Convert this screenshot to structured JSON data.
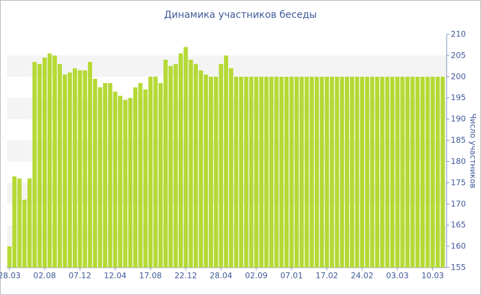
{
  "chart_data": {
    "type": "bar",
    "title": "Динамика участников беседы",
    "y_label": "Число участников",
    "color": "#b5d935",
    "grid": true,
    "categories": [
      "28.03",
      null,
      null,
      null,
      null,
      null,
      null,
      "02.08",
      null,
      null,
      null,
      null,
      null,
      null,
      "07.12",
      null,
      null,
      null,
      null,
      null,
      null,
      "12.04",
      null,
      null,
      null,
      null,
      null,
      null,
      "17.08",
      null,
      null,
      null,
      null,
      null,
      null,
      "22.12",
      null,
      null,
      null,
      null,
      null,
      null,
      "28.04",
      null,
      null,
      null,
      null,
      null,
      null,
      "02.09",
      null,
      null,
      null,
      null,
      null,
      null,
      "07.01",
      null,
      null,
      null,
      null,
      null,
      null,
      "17.02",
      null,
      null,
      null,
      null,
      null,
      null,
      "24.02",
      null,
      null,
      null,
      null,
      null,
      null,
      "03.03",
      null,
      null,
      null,
      null,
      null,
      null,
      "10.03",
      null,
      null
    ],
    "values": [
      160,
      176.5,
      176,
      171,
      176,
      203.5,
      203,
      204.5,
      205.5,
      205,
      203,
      200.5,
      201,
      202,
      201.5,
      201.5,
      203.5,
      199.5,
      197.5,
      198.5,
      198.5,
      196.5,
      195.5,
      194.5,
      195,
      197.5,
      198.5,
      197,
      200,
      200,
      198.5,
      204,
      202.5,
      203,
      205.5,
      207,
      204,
      203,
      201.5,
      200.5,
      200,
      200,
      203,
      205,
      202,
      200,
      200,
      200,
      200,
      200,
      200,
      200,
      200,
      200,
      200,
      200,
      200,
      200,
      200,
      200,
      200,
      200,
      200,
      200,
      200,
      200,
      200,
      200,
      200,
      200,
      200,
      200,
      200,
      200,
      200,
      200,
      200,
      200,
      200,
      200,
      200,
      200,
      200,
      200,
      200,
      200,
      200
    ],
    "ylim": [
      155,
      210
    ],
    "yticks": [
      155,
      160,
      165,
      170,
      175,
      180,
      185,
      190,
      195,
      200,
      205,
      210
    ]
  }
}
